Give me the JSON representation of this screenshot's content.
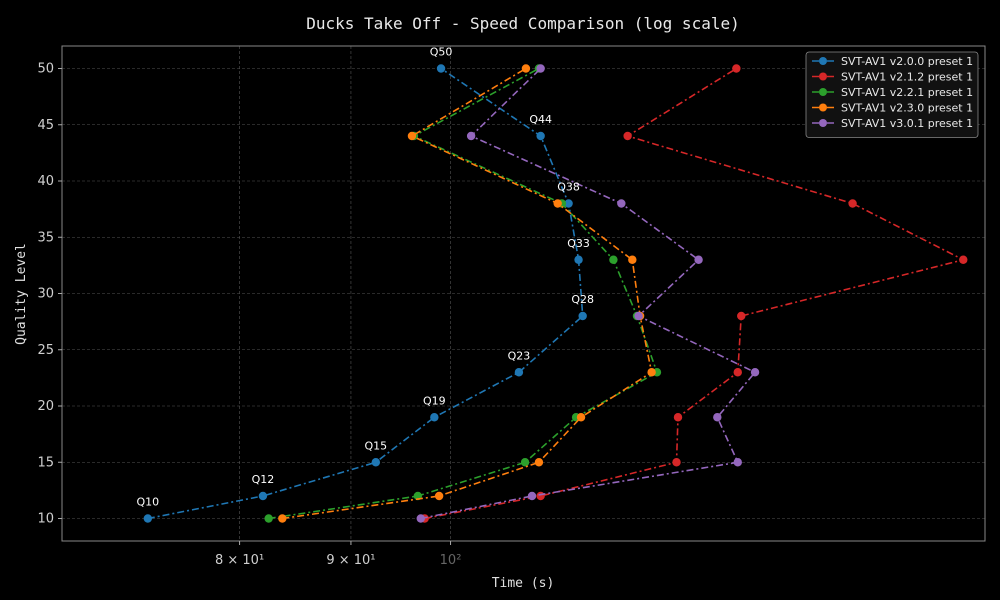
{
  "chart_data": {
    "type": "line",
    "title": "Ducks Take Off - Speed Comparison (log scale)",
    "xlabel": "Time (s)",
    "ylabel": "Quality Level",
    "x_scale": "log",
    "xlim": [
      66.3,
      176
    ],
    "ylim": [
      8,
      52
    ],
    "x_ticks": [
      {
        "value": 80,
        "label": "8 × 10¹"
      },
      {
        "value": 90,
        "label": "9 × 10¹"
      },
      {
        "value": 100,
        "label": "10²"
      }
    ],
    "y_ticks": [
      10,
      15,
      20,
      25,
      30,
      35,
      40,
      45,
      50
    ],
    "grid": true,
    "legend_position": "top-right",
    "series": [
      {
        "name": "SVT-AV1 v2.0.0 preset 1",
        "color": "#1f77b4",
        "points": [
          {
            "q": 10,
            "t": 72.6
          },
          {
            "q": 12,
            "t": 82.0
          },
          {
            "q": 15,
            "t": 92.4
          },
          {
            "q": 19,
            "t": 98.3
          },
          {
            "q": 23,
            "t": 107.5
          },
          {
            "q": 28,
            "t": 115.0
          },
          {
            "q": 33,
            "t": 114.5
          },
          {
            "q": 38,
            "t": 113.3
          },
          {
            "q": 44,
            "t": 110.0
          },
          {
            "q": 50,
            "t": 99.0
          }
        ]
      },
      {
        "name": "SVT-AV1 v2.1.2 preset 1",
        "color": "#d62728",
        "points": [
          {
            "q": 10,
            "t": 97.3
          },
          {
            "q": 12,
            "t": 110.0
          },
          {
            "q": 15,
            "t": 127.0
          },
          {
            "q": 19,
            "t": 127.2
          },
          {
            "q": 23,
            "t": 135.5
          },
          {
            "q": 28,
            "t": 136.0
          },
          {
            "q": 33,
            "t": 172.0
          },
          {
            "q": 38,
            "t": 153.0
          },
          {
            "q": 44,
            "t": 120.6
          },
          {
            "q": 50,
            "t": 135.3
          }
        ]
      },
      {
        "name": "SVT-AV1 v2.2.1 preset 1",
        "color": "#2ca02c",
        "points": [
          {
            "q": 10,
            "t": 82.5
          },
          {
            "q": 12,
            "t": 96.6
          },
          {
            "q": 15,
            "t": 108.2
          },
          {
            "q": 19,
            "t": 114.2
          },
          {
            "q": 23,
            "t": 124.4
          },
          {
            "q": 28,
            "t": 121.8
          },
          {
            "q": 33,
            "t": 118.8
          },
          {
            "q": 38,
            "t": 112.5
          },
          {
            "q": 44,
            "t": 96.2
          },
          {
            "q": 50,
            "t": 109.8
          }
        ]
      },
      {
        "name": "SVT-AV1 v2.3.0 preset 1",
        "color": "#ff7f0e",
        "points": [
          {
            "q": 10,
            "t": 83.7
          },
          {
            "q": 12,
            "t": 98.8
          },
          {
            "q": 15,
            "t": 109.8
          },
          {
            "q": 19,
            "t": 114.8
          },
          {
            "q": 23,
            "t": 123.7
          },
          {
            "q": 28,
            "t": 122.2
          },
          {
            "q": 33,
            "t": 121.2
          },
          {
            "q": 38,
            "t": 112.0
          },
          {
            "q": 44,
            "t": 96.0
          },
          {
            "q": 50,
            "t": 108.3
          }
        ]
      },
      {
        "name": "SVT-AV1 v3.0.1 preset 1",
        "color": "#9467bd",
        "points": [
          {
            "q": 10,
            "t": 96.9
          },
          {
            "q": 12,
            "t": 109.0
          },
          {
            "q": 15,
            "t": 135.5
          },
          {
            "q": 19,
            "t": 132.6
          },
          {
            "q": 23,
            "t": 138.0
          },
          {
            "q": 28,
            "t": 122.0
          },
          {
            "q": 33,
            "t": 130.0
          },
          {
            "q": 38,
            "t": 119.8
          },
          {
            "q": 44,
            "t": 102.2
          },
          {
            "q": 50,
            "t": 110.0
          }
        ]
      }
    ],
    "annotations": [
      {
        "text": "Q10",
        "t": 72.6,
        "q": 10
      },
      {
        "text": "Q12",
        "t": 82.0,
        "q": 12
      },
      {
        "text": "Q15",
        "t": 92.4,
        "q": 15
      },
      {
        "text": "Q19",
        "t": 98.3,
        "q": 19
      },
      {
        "text": "Q23",
        "t": 107.5,
        "q": 23
      },
      {
        "text": "Q28",
        "t": 115.0,
        "q": 28
      },
      {
        "text": "Q33",
        "t": 114.5,
        "q": 33
      },
      {
        "text": "Q38",
        "t": 113.3,
        "q": 38
      },
      {
        "text": "Q44",
        "t": 110.0,
        "q": 44
      },
      {
        "text": "Q50",
        "t": 99.0,
        "q": 50
      }
    ]
  }
}
